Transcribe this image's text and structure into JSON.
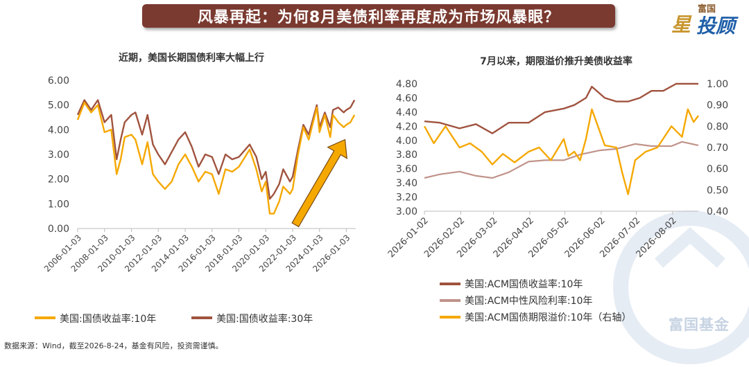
{
  "banner": {
    "title": "风暴再起：为何8月美债利率再度成为市场风暴眼？"
  },
  "logo": {
    "top": "富国",
    "left_char": "星",
    "right_chars": "投顾"
  },
  "watermark": {
    "text": "富国基金"
  },
  "source": {
    "text": "数据来源：Wind，截至2026-8-24，基金有风险，投资需谨慎。"
  },
  "chart_data": [
    {
      "type": "line",
      "title": "近期，美国长期国债利率大幅上行",
      "xlabel": "",
      "ylabel": "",
      "ylim": [
        0,
        6
      ],
      "yticks": [
        "0.00",
        "1.00",
        "2.00",
        "3.00",
        "4.00",
        "5.00",
        "6.00"
      ],
      "xticks": [
        "2006-01-03",
        "2008-01-03",
        "2010-01-03",
        "2012-01-03",
        "2014-01-03",
        "2016-01-03",
        "2018-01-03",
        "2020-01-03",
        "2022-01-03",
        "2024-01-03",
        "2026-01-03"
      ],
      "xlim": [
        2006.0,
        2026.7
      ],
      "legend": "bottom",
      "colors": {
        "y10": "#f5a800",
        "y30": "#a0533e",
        "arrow": "#f5a800"
      },
      "series": [
        {
          "name": "美国:国债收益率:10年",
          "x": [
            2006.0,
            2006.5,
            2007.0,
            2007.5,
            2008.0,
            2008.5,
            2008.9,
            2009.2,
            2009.5,
            2010.0,
            2010.3,
            2010.8,
            2011.2,
            2011.6,
            2012.0,
            2012.5,
            2013.0,
            2013.5,
            2014.0,
            2014.5,
            2015.0,
            2015.5,
            2016.0,
            2016.5,
            2017.0,
            2017.5,
            2018.0,
            2018.8,
            2019.3,
            2019.7,
            2020.0,
            2020.3,
            2020.6,
            2021.0,
            2021.3,
            2021.8,
            2022.0,
            2022.4,
            2022.8,
            2023.2,
            2023.8,
            2024.0,
            2024.4,
            2024.8,
            2025.0,
            2025.4,
            2025.8,
            2026.0,
            2026.3,
            2026.6
          ],
          "values": [
            4.4,
            5.1,
            4.7,
            5.0,
            3.9,
            4.0,
            2.2,
            2.8,
            3.7,
            3.8,
            3.6,
            2.6,
            3.5,
            2.2,
            1.9,
            1.6,
            1.9,
            2.6,
            3.0,
            2.5,
            1.9,
            2.3,
            2.2,
            1.4,
            2.4,
            2.3,
            2.5,
            3.2,
            2.4,
            1.5,
            1.9,
            0.6,
            0.6,
            1.1,
            1.7,
            1.4,
            1.6,
            3.0,
            4.1,
            3.6,
            4.9,
            3.9,
            4.6,
            3.7,
            4.6,
            4.3,
            4.1,
            4.2,
            4.3,
            4.6
          ]
        },
        {
          "name": "美国:国债收益率:30年",
          "x": [
            2006.0,
            2006.5,
            2007.0,
            2007.5,
            2008.0,
            2008.5,
            2008.9,
            2009.2,
            2009.5,
            2010.0,
            2010.3,
            2010.8,
            2011.2,
            2011.6,
            2012.0,
            2012.5,
            2013.0,
            2013.5,
            2014.0,
            2014.5,
            2015.0,
            2015.5,
            2016.0,
            2016.5,
            2017.0,
            2017.5,
            2018.0,
            2018.8,
            2019.3,
            2019.7,
            2020.0,
            2020.3,
            2020.6,
            2021.0,
            2021.3,
            2021.8,
            2022.0,
            2022.4,
            2022.8,
            2023.2,
            2023.8,
            2024.0,
            2024.4,
            2024.8,
            2025.0,
            2025.4,
            2025.8,
            2026.0,
            2026.3,
            2026.6
          ],
          "values": [
            4.6,
            5.2,
            4.8,
            5.2,
            4.3,
            4.6,
            2.8,
            3.6,
            4.3,
            4.6,
            4.7,
            3.8,
            4.6,
            3.4,
            3.0,
            2.6,
            3.1,
            3.6,
            3.9,
            3.3,
            2.5,
            3.0,
            2.9,
            2.2,
            3.0,
            2.8,
            2.9,
            3.4,
            2.9,
            2.0,
            2.3,
            1.2,
            1.4,
            1.8,
            2.4,
            1.9,
            2.1,
            3.2,
            4.2,
            3.8,
            5.0,
            4.1,
            4.7,
            4.1,
            4.8,
            4.9,
            4.7,
            4.8,
            4.9,
            5.2
          ]
        }
      ]
    },
    {
      "type": "line",
      "title": "7月以来，期限溢价推升美债收益率",
      "xlabel": "",
      "ylabel": "",
      "ylim": [
        3.0,
        4.8
      ],
      "y2lim": [
        0.4,
        1.0
      ],
      "yticks": [
        "3.00",
        "3.20",
        "3.40",
        "3.60",
        "3.80",
        "4.00",
        "4.20",
        "4.40",
        "4.60",
        "4.80"
      ],
      "y2ticks": [
        "0.40",
        "0.50",
        "0.60",
        "0.70",
        "0.80",
        "0.90",
        "1.00"
      ],
      "xticks": [
        "2026-01-02",
        "2026-02-02",
        "2026-03-02",
        "2026-04-02",
        "2026-05-02",
        "2026-06-02",
        "2026-07-02",
        "2026-08-02"
      ],
      "xlim": [
        "2026-01-02",
        "2026-08-24"
      ],
      "legend": "bottom",
      "colors": {
        "acm": "#a0533e",
        "neutral": "#c0938a",
        "premium": "#f5a800"
      },
      "series": [
        {
          "name": "美国:ACM国债收益率:10年",
          "axis": "left",
          "x": [
            "2026-01-02",
            "2026-01-15",
            "2026-02-01",
            "2026-02-15",
            "2026-03-01",
            "2026-03-15",
            "2026-04-01",
            "2026-04-15",
            "2026-05-01",
            "2026-05-10",
            "2026-05-20",
            "2026-05-25",
            "2026-06-05",
            "2026-06-15",
            "2026-06-25",
            "2026-07-05",
            "2026-07-15",
            "2026-07-25",
            "2026-08-05",
            "2026-08-15",
            "2026-08-24"
          ],
          "values": [
            4.27,
            4.25,
            4.17,
            4.23,
            4.1,
            4.25,
            4.25,
            4.4,
            4.45,
            4.5,
            4.6,
            4.76,
            4.6,
            4.55,
            4.55,
            4.6,
            4.7,
            4.7,
            4.8,
            4.8,
            4.8
          ]
        },
        {
          "name": "美国:ACM中性风险利率:10年",
          "axis": "left",
          "x": [
            "2026-01-02",
            "2026-01-15",
            "2026-02-01",
            "2026-02-15",
            "2026-03-01",
            "2026-03-15",
            "2026-04-01",
            "2026-04-15",
            "2026-05-01",
            "2026-05-15",
            "2026-06-01",
            "2026-06-15",
            "2026-07-01",
            "2026-07-15",
            "2026-08-01",
            "2026-08-10",
            "2026-08-24"
          ],
          "values": [
            3.47,
            3.52,
            3.56,
            3.5,
            3.47,
            3.55,
            3.7,
            3.72,
            3.72,
            3.8,
            3.86,
            3.88,
            3.95,
            3.92,
            3.92,
            3.98,
            3.93
          ]
        },
        {
          "name": "美国:ACM国债期限溢价:10年（右轴）",
          "axis": "right",
          "x": [
            "2026-01-02",
            "2026-01-10",
            "2026-01-20",
            "2026-02-01",
            "2026-02-10",
            "2026-02-20",
            "2026-03-01",
            "2026-03-10",
            "2026-03-20",
            "2026-04-01",
            "2026-04-10",
            "2026-04-20",
            "2026-05-01",
            "2026-05-05",
            "2026-05-10",
            "2026-05-15",
            "2026-05-20",
            "2026-05-25",
            "2026-06-05",
            "2026-06-15",
            "2026-06-20",
            "2026-06-25",
            "2026-07-01",
            "2026-07-10",
            "2026-07-20",
            "2026-08-01",
            "2026-08-10",
            "2026-08-15",
            "2026-08-20",
            "2026-08-24"
          ],
          "values": [
            0.8,
            0.72,
            0.8,
            0.7,
            0.72,
            0.68,
            0.62,
            0.67,
            0.63,
            0.68,
            0.7,
            0.64,
            0.74,
            0.66,
            0.68,
            0.64,
            0.74,
            0.88,
            0.71,
            0.7,
            0.58,
            0.48,
            0.64,
            0.68,
            0.7,
            0.8,
            0.75,
            0.88,
            0.82,
            0.85
          ]
        }
      ]
    }
  ]
}
